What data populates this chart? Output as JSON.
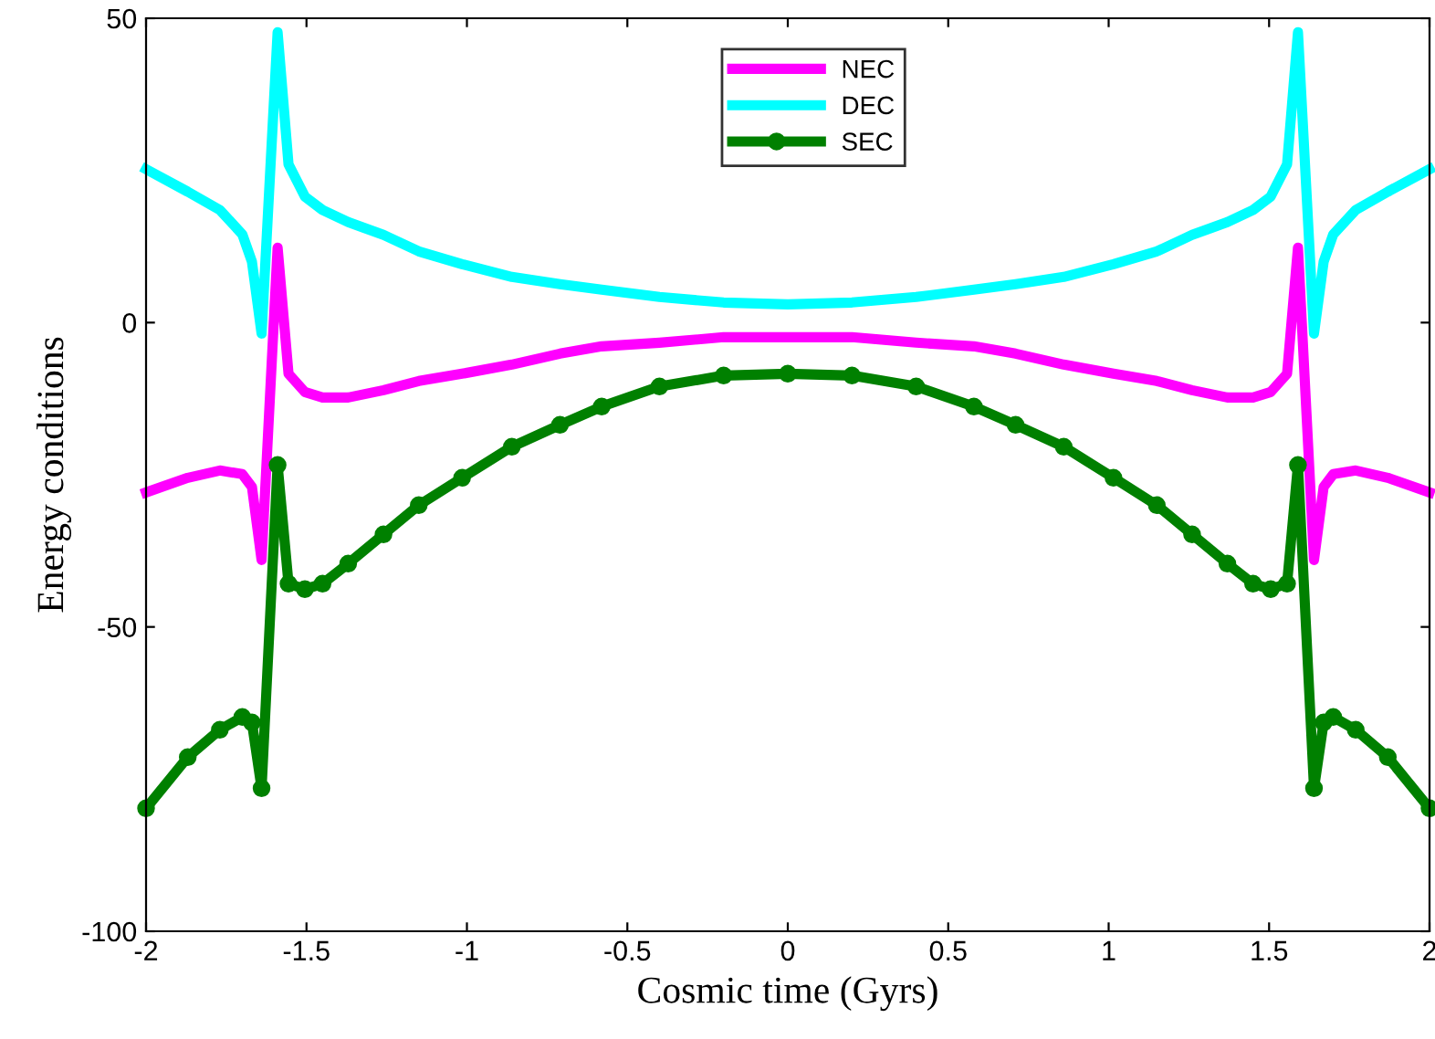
{
  "chart_data": {
    "type": "line",
    "xlabel": "Cosmic time (Gyrs)",
    "ylabel": "Energy conditions",
    "x": [
      -2,
      -1.87,
      -1.77,
      -1.7,
      -1.67,
      -1.64,
      -1.59,
      -1.556,
      -1.505,
      -1.45,
      -1.37,
      -1.26,
      -1.15,
      -1.015,
      -0.86,
      -0.71,
      -0.58,
      -0.4,
      -0.2,
      0,
      0.2,
      0.4,
      0.58,
      0.71,
      0.86,
      1.015,
      1.15,
      1.26,
      1.37,
      1.45,
      1.505,
      1.556,
      1.59,
      1.64,
      1.67,
      1.7,
      1.77,
      1.87,
      2
    ],
    "series": [
      {
        "name": "NEC",
        "color": "#ff00ff",
        "marker": "none",
        "values": [
          -27.9,
          -25.5,
          -24.3,
          -24.9,
          -27,
          -39,
          12.3,
          -8.4,
          -11.4,
          -12.3,
          -12.3,
          -11.1,
          -9.6,
          -8.4,
          -6.9,
          -5.1,
          -3.9,
          -3.3,
          -2.4,
          -2.4,
          -2.4,
          -3.3,
          -3.9,
          -5.1,
          -6.9,
          -8.4,
          -9.6,
          -11.1,
          -12.3,
          -12.3,
          -11.4,
          -8.4,
          12.3,
          -39,
          -27,
          -24.9,
          -24.3,
          -25.5,
          -27.9
        ]
      },
      {
        "name": "DEC",
        "color": "#00ffff",
        "marker": "none",
        "values": [
          25.2,
          21.5,
          18.5,
          14.5,
          10,
          -1.8,
          47.7,
          26,
          20.7,
          18.5,
          16.5,
          14.4,
          11.7,
          9.6,
          7.5,
          6.3,
          5.4,
          4.2,
          3.3,
          3,
          3.3,
          4.2,
          5.4,
          6.3,
          7.5,
          9.6,
          11.7,
          14.4,
          16.5,
          18.5,
          20.7,
          26,
          47.7,
          -1.8,
          10,
          14.5,
          18.5,
          21.5,
          25.2
        ]
      },
      {
        "name": "SEC",
        "color": "#008000",
        "marker": "circle",
        "values": [
          -79.8,
          -71.4,
          -66.9,
          -64.8,
          -65.7,
          -76.5,
          -23.4,
          -42.9,
          -43.8,
          -42.9,
          -39.6,
          -34.8,
          -30,
          -25.5,
          -20.4,
          -16.8,
          -13.8,
          -10.5,
          -8.7,
          -8.4,
          -8.7,
          -10.5,
          -13.8,
          -16.8,
          -20.4,
          -25.5,
          -30,
          -34.8,
          -39.6,
          -42.9,
          -43.8,
          -42.9,
          -23.4,
          -76.5,
          -65.7,
          -64.8,
          -66.9,
          -71.4,
          -79.8
        ]
      }
    ],
    "xlim": [
      -2,
      2
    ],
    "xticks": [
      -2,
      -1.5,
      -1,
      -0.5,
      0,
      0.5,
      1,
      1.5,
      2
    ],
    "ylim": [
      -100,
      50
    ],
    "yticks": [
      -100,
      -50,
      0,
      50
    ],
    "grid": false,
    "legend": "top",
    "line_style": "solid"
  }
}
